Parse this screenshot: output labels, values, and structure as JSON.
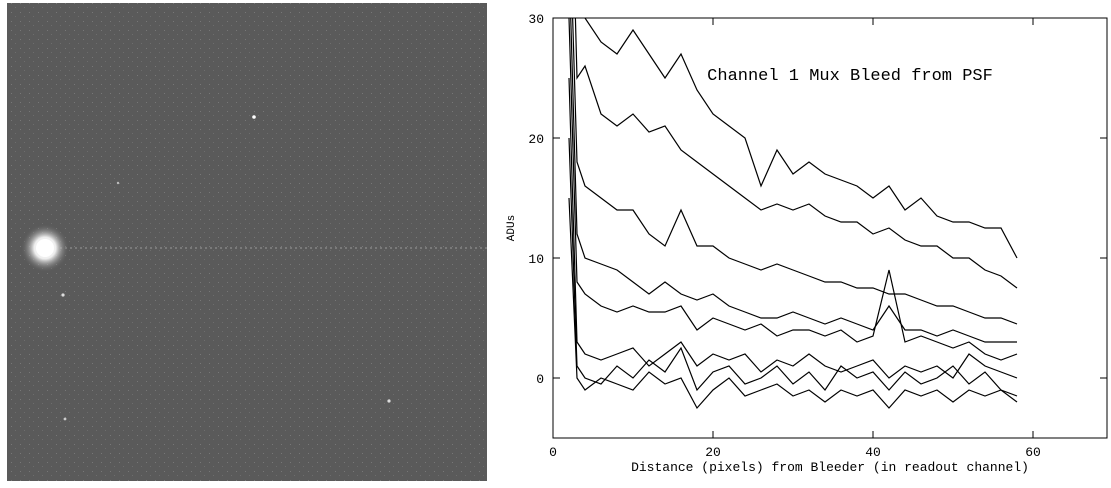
{
  "chart_data": {
    "type": "line",
    "annotation": "Channel 1 Mux Bleed from PSF",
    "x_label": "Distance (pixels) from Bleeder (in readout channel)",
    "y_label": "ADUs",
    "x": [
      2,
      3,
      4,
      6,
      8,
      10,
      12,
      14,
      16,
      18,
      20,
      22,
      24,
      26,
      28,
      30,
      32,
      34,
      36,
      38,
      40,
      42,
      44,
      46,
      48,
      50,
      52,
      54,
      56,
      58
    ],
    "series": [
      {
        "color": "#000000",
        "values": [
          60,
          35,
          30,
          28,
          27,
          29,
          27,
          25,
          27,
          24,
          22,
          21,
          20,
          16,
          19,
          17,
          18,
          17,
          16.5,
          16,
          15,
          16,
          14,
          15,
          13.5,
          13,
          13,
          12.5,
          12.5,
          10
        ]
      },
      {
        "color": "#000000",
        "values": [
          50,
          25,
          26,
          22,
          21,
          22,
          20.5,
          21,
          19,
          18,
          17,
          16,
          15,
          14,
          14.5,
          14,
          14.5,
          13.5,
          13,
          13,
          12,
          12.5,
          11.5,
          11,
          11,
          10,
          10,
          9,
          8.5,
          7.5
        ]
      },
      {
        "color": "#000000",
        "values": [
          40,
          18,
          16,
          15,
          14,
          14,
          12,
          11,
          14,
          11,
          11,
          10,
          9.5,
          9,
          9.5,
          9,
          8.5,
          8,
          8,
          7.5,
          7.5,
          7,
          7,
          6.5,
          6,
          6,
          5.5,
          5,
          5,
          4.5
        ]
      },
      {
        "color": "#000000",
        "values": [
          35,
          12,
          10,
          9.5,
          9,
          8,
          7,
          8,
          7,
          6.5,
          7,
          6,
          5.5,
          5,
          5,
          5.5,
          5,
          4.5,
          5,
          4.5,
          4,
          6,
          4,
          4,
          3.5,
          4,
          3.5,
          3,
          3,
          3
        ]
      },
      {
        "color": "#000000",
        "values": [
          30,
          8,
          7,
          6,
          5.5,
          6,
          5.5,
          5.5,
          6,
          4,
          5,
          4.5,
          4,
          4.5,
          3.5,
          4,
          4,
          3.5,
          4,
          3,
          3.5,
          9,
          3,
          3.5,
          3,
          2.5,
          3,
          2,
          1.5,
          2
        ]
      },
      {
        "color": "#000000",
        "values": [
          25,
          3,
          2,
          1.5,
          2,
          2.5,
          1,
          2,
          3,
          1,
          2,
          1.5,
          2,
          0.5,
          1.5,
          1,
          2,
          1,
          0.5,
          1,
          1.5,
          0,
          1,
          0.5,
          1,
          0,
          2,
          1,
          0.5,
          0
        ]
      },
      {
        "color": "#000000",
        "values": [
          20,
          1,
          0,
          -0.5,
          1,
          0,
          1.5,
          0.5,
          2.5,
          -1,
          0.5,
          1,
          -0.5,
          0,
          1,
          -0.5,
          0.5,
          -1,
          1,
          0,
          0.5,
          -1,
          0.5,
          -0.5,
          0,
          1,
          -0.5,
          0.5,
          -1,
          -1.5
        ]
      },
      {
        "color": "#000000",
        "values": [
          15,
          0,
          -1,
          0,
          -0.5,
          -1,
          0.5,
          -0.5,
          0,
          -2.5,
          -1,
          0,
          -1.5,
          -1,
          -0.5,
          -1.5,
          -1,
          -2,
          -1,
          -1.5,
          -1,
          -2.5,
          -1,
          -1.5,
          -1,
          -2,
          -1,
          -1.5,
          -1,
          -2
        ]
      }
    ],
    "xlim": [
      0,
      69.25
    ],
    "xticks": [
      0,
      20,
      40,
      60
    ],
    "ylim": [
      -5,
      30
    ],
    "yticks": [
      0,
      10,
      20,
      30
    ]
  }
}
